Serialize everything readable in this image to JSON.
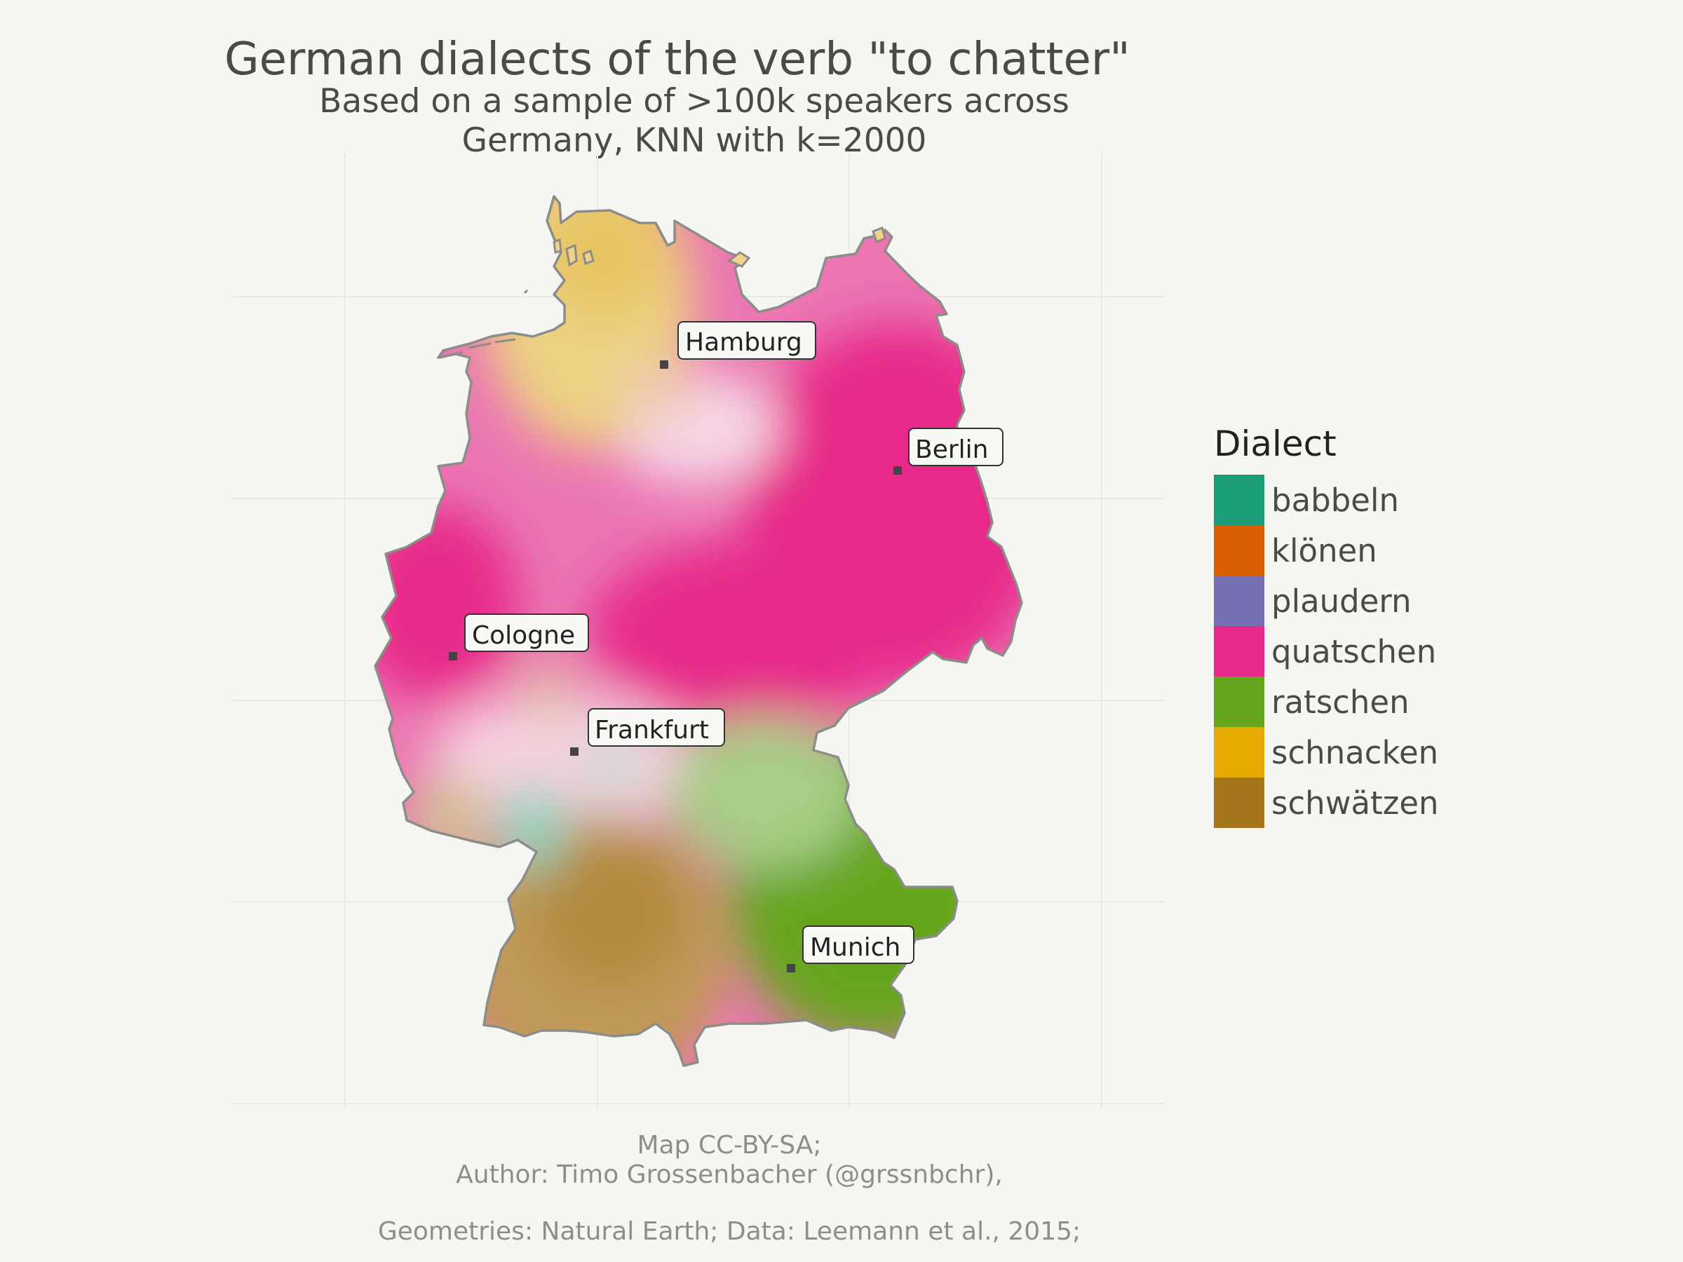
{
  "title": "German dialects of the verb \"to chatter\"",
  "subtitle_line1": "Based on a sample of >100k speakers across",
  "subtitle_line2": "Germany, KNN with k=2000",
  "cities": [
    {
      "name": "Hamburg"
    },
    {
      "name": "Berlin"
    },
    {
      "name": "Cologne"
    },
    {
      "name": "Frankfurt"
    },
    {
      "name": "Munich"
    }
  ],
  "legend": {
    "title": "Dialect",
    "items": [
      {
        "label": "babbeln",
        "color": "#1b9e77"
      },
      {
        "label": "klönen",
        "color": "#d95f02"
      },
      {
        "label": "plaudern",
        "color": "#7570b3"
      },
      {
        "label": "quatschen",
        "color": "#e7298a"
      },
      {
        "label": "ratschen",
        "color": "#66a61e"
      },
      {
        "label": "schnacken",
        "color": "#e6ab02"
      },
      {
        "label": "schwätzen",
        "color": "#a6761d"
      }
    ]
  },
  "caption": {
    "line1": "Map CC-BY-SA;",
    "line2": "Author: Timo Grossenbacher (@grssnbchr),",
    "line3": "Geometries: Natural Earth; Data: Leemann et al., 2015;"
  }
}
